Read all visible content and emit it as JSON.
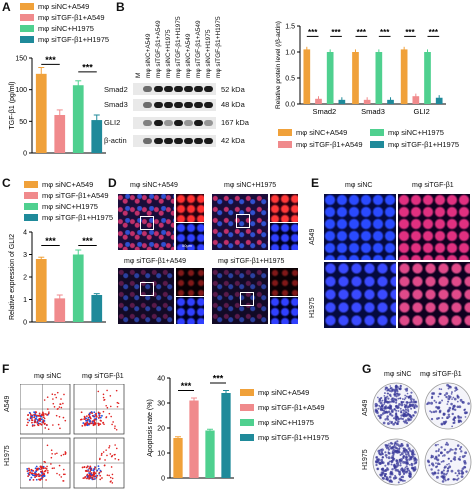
{
  "panels": {
    "A": "A",
    "B": "B",
    "C": "C",
    "D": "D",
    "E": "E",
    "F": "F",
    "G": "G"
  },
  "colors": {
    "siNC_A549": "#f0a13a",
    "siTGF_A549": "#f08a8c",
    "siNC_H1975": "#4fd08f",
    "siTGF_H1975": "#1f8a9a"
  },
  "legend_groups": [
    "mφ siNC+A549",
    "mφ siTGF-β1+A549",
    "mφ siNC+H1975",
    "mφ siTGF-β1+H1975"
  ],
  "sig": "***",
  "chart_A": {
    "type": "bar",
    "ylabel": "TGF-β1 (pg/ml)",
    "yticks": [
      "0",
      "50",
      "100",
      "150"
    ],
    "ylim": [
      0,
      150
    ]
  },
  "chart_data": [
    {
      "type": "bar",
      "panel": "A",
      "categories": [
        "mφ siNC+A549",
        "mφ siTGF-β1+A549",
        "mφ siNC+H1975",
        "mφ siTGF-β1+H1975"
      ],
      "values": [
        125,
        60,
        107,
        52
      ],
      "errors": [
        10,
        8,
        7,
        8
      ],
      "ylabel": "TGF-β1 (pg/ml)",
      "ylim": [
        0,
        150
      ]
    },
    {
      "type": "bar",
      "panel": "B",
      "categories": [
        "Smad2",
        "Smad3",
        "GLI2"
      ],
      "series": [
        {
          "name": "mφ siNC+A549",
          "values": [
            1.05,
            1.0,
            1.05
          ]
        },
        {
          "name": "mφ siTGF-β1+A549",
          "values": [
            0.1,
            0.08,
            0.15
          ]
        },
        {
          "name": "mφ siNC+H1975",
          "values": [
            1.0,
            1.0,
            1.0
          ]
        },
        {
          "name": "mφ siTGF-β1+H1975",
          "values": [
            0.08,
            0.08,
            0.12
          ]
        }
      ],
      "ylabel": "Relative protein level\n(/β-actin)",
      "ylim": [
        0,
        1.5
      ]
    },
    {
      "type": "bar",
      "panel": "C",
      "categories": [
        "mφ siNC+A549",
        "mφ siTGF-β1+A549",
        "mφ siNC+H1975",
        "mφ siTGF-β1+H1975"
      ],
      "values": [
        2.8,
        1.05,
        3.0,
        1.2
      ],
      "errors": [
        0.08,
        0.15,
        0.2,
        0.06
      ],
      "ylabel": "Relative expression of GLI2",
      "ylim": [
        0,
        4
      ]
    },
    {
      "type": "bar",
      "panel": "F",
      "categories": [
        "mφ siNC+A549",
        "mφ siTGF-β1+A549",
        "mφ siNC+H1975",
        "mφ siTGF-β1+H1975"
      ],
      "values": [
        16,
        31,
        19,
        34
      ],
      "errors": [
        0.5,
        1,
        0.5,
        1
      ],
      "ylabel": "Apoptosis rate (%)",
      "ylim": [
        0,
        40
      ]
    }
  ],
  "chart_B": {
    "ylabel": "Relative protein level (/β-actin)",
    "yticks": [
      "0.0",
      "0.5",
      "1.0",
      "1.5"
    ],
    "categories": [
      "Smad2",
      "Smad3",
      "GLI2"
    ]
  },
  "chart_C": {
    "ylabel": "Relative expression of GLI2",
    "yticks": [
      "0",
      "1",
      "2",
      "3",
      "4"
    ]
  },
  "chart_F": {
    "ylabel": "Apoptosis rate (%)",
    "yticks": [
      "0",
      "10",
      "20",
      "30",
      "40"
    ]
  },
  "blot": {
    "lanes": [
      "M",
      "mφ siNC+A549",
      "mφ siTGF-β1+A549",
      "mφ siNC+H1975",
      "mφ siTGF-β1+H1975",
      "mφ siNC+A549",
      "mφ siTGF-β1+A549",
      "mφ siNC+H1975",
      "mφ siTGF-β1+H1975"
    ],
    "proteins": [
      "Smad2",
      "Smad3",
      "GLI2",
      "β-actin"
    ],
    "sizes": [
      "52 kDa",
      "48 kDa",
      "167 kDa",
      "42 kDa"
    ]
  },
  "panel_D": {
    "captions": [
      "mφ siNC+A549",
      "mφ siNC+H1975",
      "mφ siTGF-β1+A549",
      "mφ siTGF-β1+H1975"
    ],
    "scale": "50μm"
  },
  "panel_E": {
    "cols": [
      "mφ siNC",
      "mφ siTGF-β1"
    ],
    "rows": [
      "A549",
      "H1975"
    ]
  },
  "panel_F": {
    "cols": [
      "mφ siNC",
      "mφ siTGF-β1"
    ],
    "rows": [
      "A549",
      "H1975"
    ]
  },
  "panel_G": {
    "cols": [
      "mφ siNC",
      "mφ siTGF-β1"
    ],
    "rows": [
      "A549",
      "H1975"
    ]
  }
}
